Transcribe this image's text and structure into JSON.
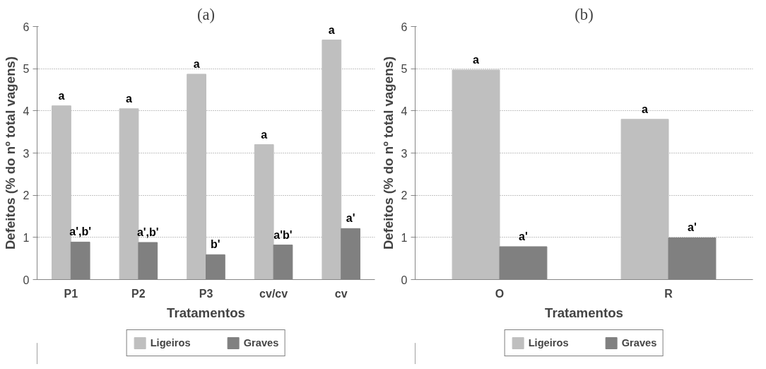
{
  "chart_data": [
    {
      "type": "bar",
      "title": "(a)",
      "xlabel": "Tratamentos",
      "ylabel": "Defeitos (% do nº total vagens)",
      "categories": [
        "P1",
        "P2",
        "P3",
        "cv/cv",
        "cv"
      ],
      "series": [
        {
          "name": "Ligeiros",
          "color": "#bfbfbf",
          "values": [
            4.12,
            4.05,
            4.87,
            3.2,
            5.68
          ]
        },
        {
          "name": "Graves",
          "color": "#808080",
          "values": [
            0.89,
            0.88,
            0.59,
            0.82,
            1.21
          ]
        }
      ],
      "ylim": [
        0,
        6
      ],
      "yticks": [
        0,
        1,
        2,
        3,
        4,
        5,
        6
      ],
      "grid": "y",
      "legend": "bottom",
      "annotations": [
        {
          "text": "a",
          "x": "P1",
          "y": 4.12
        },
        {
          "text": "a',b'",
          "x": "P1",
          "y": 0.89
        },
        {
          "text": "a",
          "x": "P2",
          "y": 4.05
        },
        {
          "text": "a',b'",
          "x": "P2",
          "y": 0.88
        },
        {
          "text": "a",
          "x": "P3",
          "y": 4.87
        },
        {
          "text": "b'",
          "x": "P3",
          "y": 0.59
        },
        {
          "text": "a",
          "x": "cv/cv",
          "y": 3.2
        },
        {
          "text": "a'b'",
          "x": "cv/cv",
          "y": 0.82
        },
        {
          "text": "a",
          "x": "cv",
          "y": 5.68
        },
        {
          "text": "a'",
          "x": "cv",
          "y": 1.21
        }
      ]
    },
    {
      "type": "bar",
      "title": "(b)",
      "xlabel": "Tratamentos",
      "ylabel": "Defeitos (% do nº total vagens)",
      "categories": [
        "O",
        "R"
      ],
      "series": [
        {
          "name": "Ligeiros",
          "color": "#bfbfbf",
          "values": [
            4.97,
            3.8
          ]
        },
        {
          "name": "Graves",
          "color": "#808080",
          "values": [
            0.78,
            0.99
          ]
        }
      ],
      "ylim": [
        0,
        6
      ],
      "yticks": [
        0,
        1,
        2,
        3,
        4,
        5,
        6
      ],
      "grid": "y",
      "legend": "bottom",
      "annotations": [
        {
          "text": "a",
          "x": "O",
          "y": 4.97
        },
        {
          "text": "a'",
          "x": "O",
          "y": 0.78
        },
        {
          "text": "a",
          "x": "R",
          "y": 3.8
        },
        {
          "text": "a'",
          "x": "R",
          "y": 0.99
        }
      ]
    }
  ]
}
